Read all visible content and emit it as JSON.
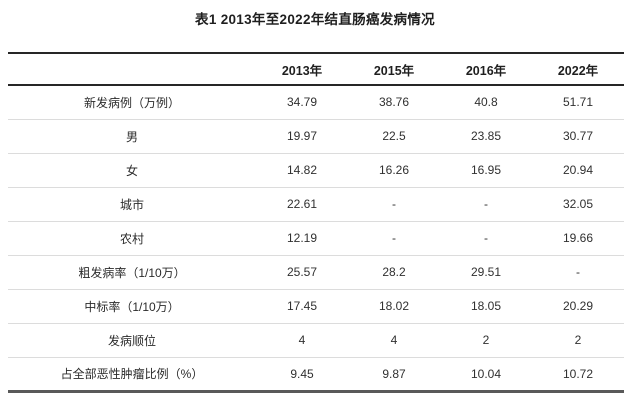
{
  "page": {
    "title": "表1 2013年至2022年结直肠癌发病情况"
  },
  "table": {
    "headers": [
      "",
      "2013年",
      "2015年",
      "2016年",
      "2022年"
    ],
    "rows": [
      {
        "label": "新发病例（万例）",
        "values": [
          "34.79",
          "38.76",
          "40.8",
          "51.71"
        ]
      },
      {
        "label": "男",
        "values": [
          "19.97",
          "22.5",
          "23.85",
          "30.77"
        ]
      },
      {
        "label": "女",
        "values": [
          "14.82",
          "16.26",
          "16.95",
          "20.94"
        ]
      },
      {
        "label": "城市",
        "values": [
          "22.61",
          "-",
          "-",
          "32.05"
        ]
      },
      {
        "label": "农村",
        "values": [
          "12.19",
          "-",
          "-",
          "19.66"
        ]
      },
      {
        "label": "粗发病率（1/10万）",
        "values": [
          "25.57",
          "28.2",
          "29.51",
          "-"
        ]
      },
      {
        "label": "中标率（1/10万）",
        "values": [
          "17.45",
          "18.02",
          "18.05",
          "20.29"
        ]
      },
      {
        "label": "发病顺位",
        "values": [
          "4",
          "4",
          "2",
          "2"
        ]
      },
      {
        "label": "占全部恶性肿瘤比例（%）",
        "values": [
          "9.45",
          "9.87",
          "10.04",
          "10.72"
        ]
      }
    ],
    "colors": {
      "heavy_border": "#262626",
      "light_divider": "#dcdcdc",
      "bottom_border": "#595959",
      "header_text": "#1f1f1f",
      "body_text": "#303030"
    }
  }
}
